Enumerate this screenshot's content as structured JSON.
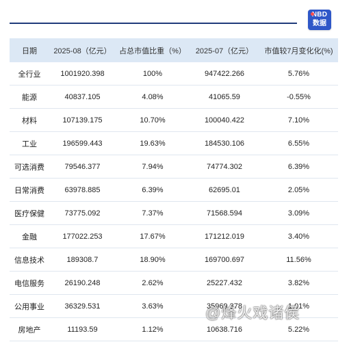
{
  "logo": {
    "line1": "NBD",
    "line2": "数据"
  },
  "table": {
    "headers": [
      "日期",
      "2025-08（亿元）",
      "占总市值比重（%）",
      "2025-07（亿元）",
      "市值较7月变化化(%)"
    ],
    "rows": [
      [
        "全行业",
        "1001920.398",
        "100%",
        "947422.266",
        "5.76%"
      ],
      [
        "能源",
        "40837.105",
        "4.08%",
        "41065.59",
        "-0.55%"
      ],
      [
        "材料",
        "107139.175",
        "10.70%",
        "100040.422",
        "7.10%"
      ],
      [
        "工业",
        "196599.443",
        "19.63%",
        "184530.106",
        "6.55%"
      ],
      [
        "可选消费",
        "79546.377",
        "7.94%",
        "74774.302",
        "6.39%"
      ],
      [
        "日常消费",
        "63978.885",
        "6.39%",
        "62695.01",
        "2.05%"
      ],
      [
        "医疗保健",
        "73775.092",
        "7.37%",
        "71568.594",
        "3.09%"
      ],
      [
        "金融",
        "177022.253",
        "17.67%",
        "171212.019",
        "3.40%"
      ],
      [
        "信息技术",
        "189308.7",
        "18.90%",
        "169700.697",
        "11.56%"
      ],
      [
        "电信服务",
        "26190.248",
        "2.62%",
        "25227.432",
        "3.82%"
      ],
      [
        "公用事业",
        "36329.531",
        "3.63%",
        "35969.378",
        "1.01%"
      ],
      [
        "房地产",
        "11193.59",
        "1.12%",
        "10638.716",
        "5.22%"
      ]
    ]
  },
  "watermark": "@烽火戏诸侯"
}
